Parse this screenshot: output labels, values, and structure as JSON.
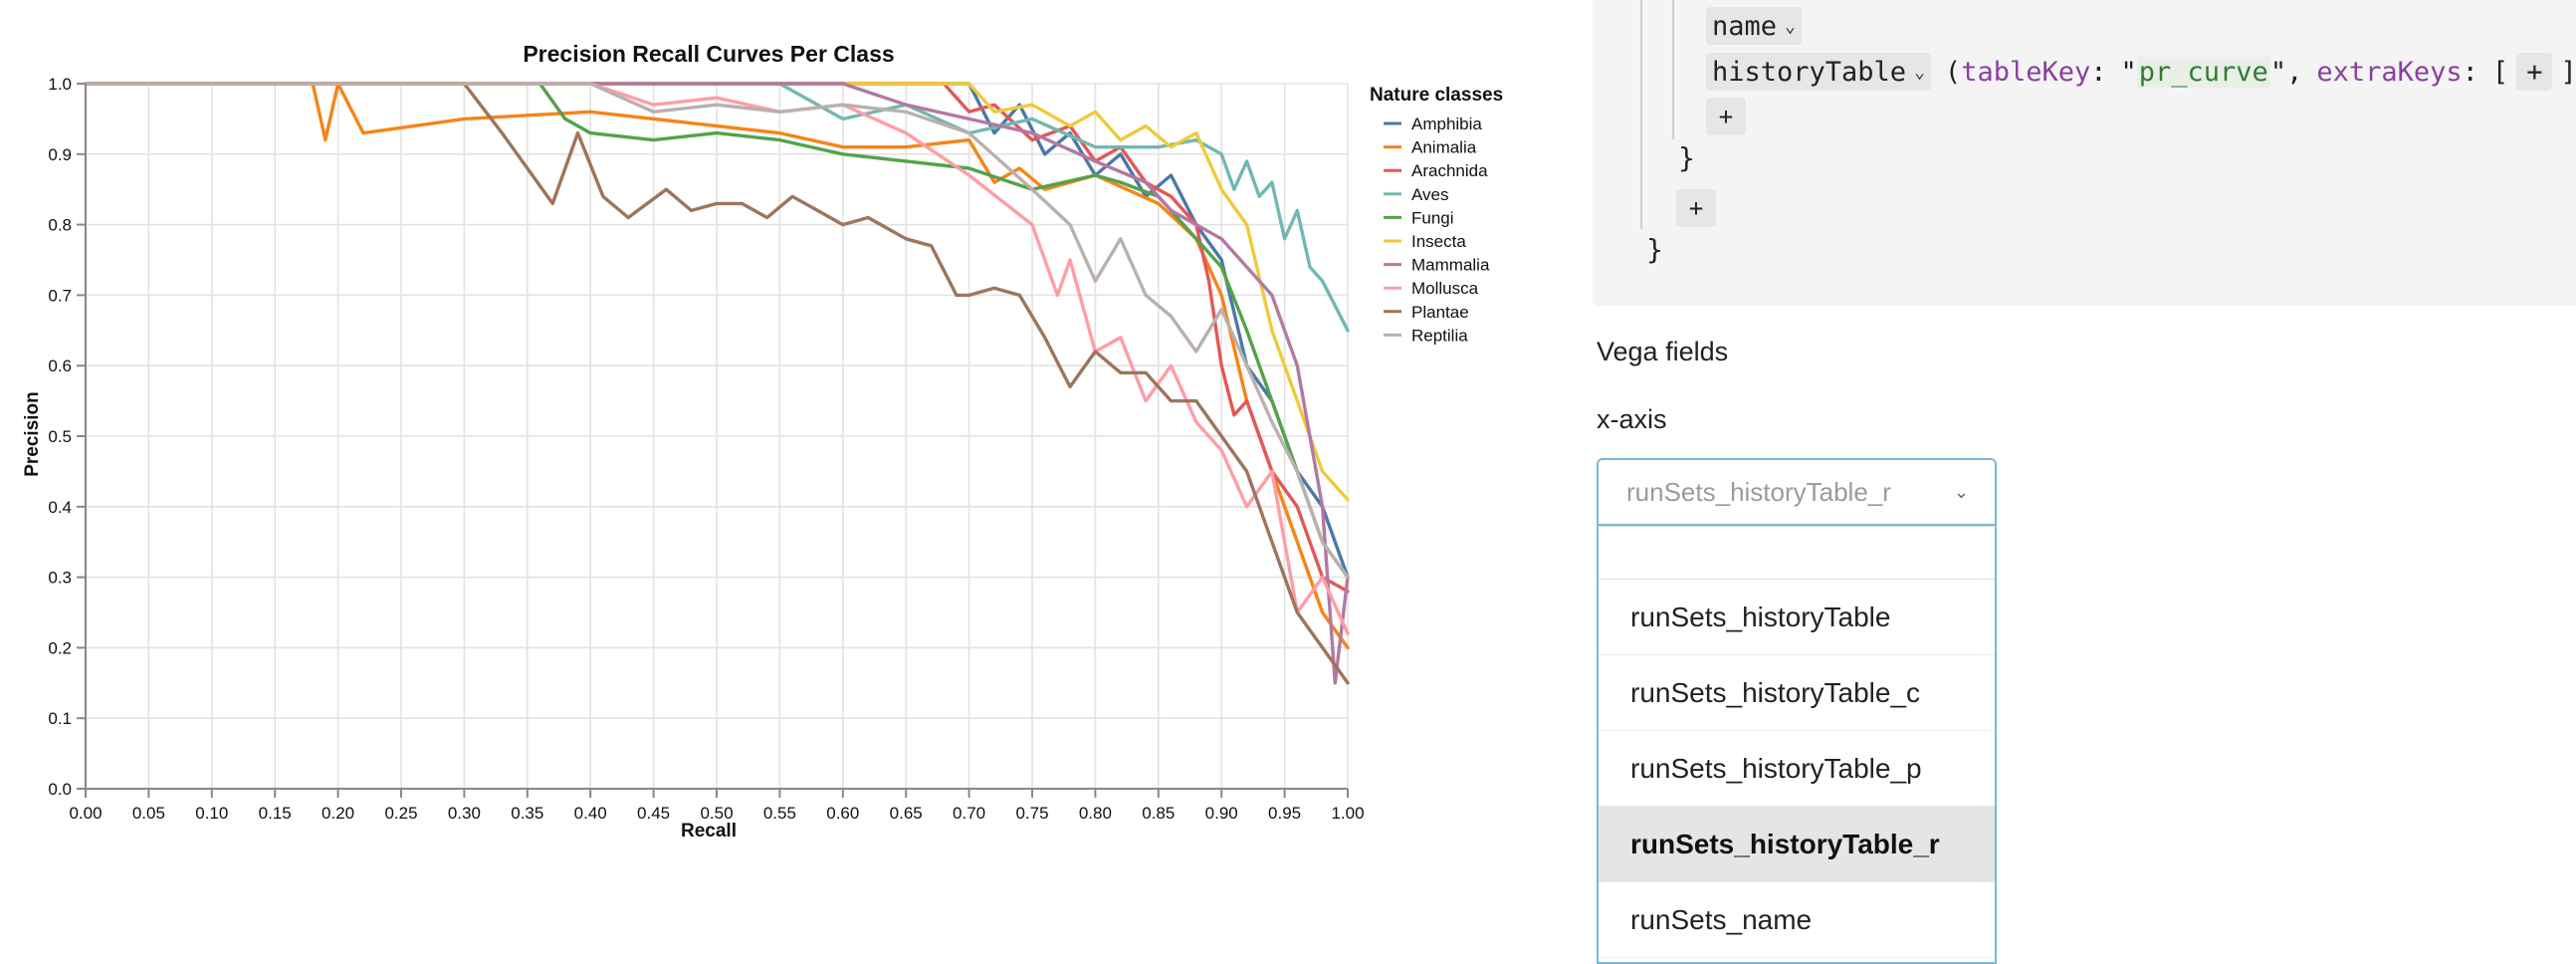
{
  "chart_data": {
    "type": "line",
    "title": "Precision Recall Curves Per Class",
    "xlabel": "Recall",
    "ylabel": "Precision",
    "xlim": [
      0,
      1.0
    ],
    "ylim": [
      0,
      1.0
    ],
    "grid": true,
    "x_ticks": [
      "0.00",
      "0.05",
      "0.10",
      "0.15",
      "0.20",
      "0.25",
      "0.30",
      "0.35",
      "0.40",
      "0.45",
      "0.50",
      "0.55",
      "0.60",
      "0.65",
      "0.70",
      "0.75",
      "0.80",
      "0.85",
      "0.90",
      "0.95",
      "1.00"
    ],
    "y_ticks": [
      "0.0",
      "0.1",
      "0.2",
      "0.3",
      "0.4",
      "0.5",
      "0.6",
      "0.7",
      "0.8",
      "0.9",
      "1.0"
    ],
    "legend_title": "Nature classes",
    "legend_position": "right",
    "series": [
      {
        "name": "Amphibia",
        "color": "#4c78a8",
        "x": [
          0,
          0.7,
          0.72,
          0.74,
          0.76,
          0.78,
          0.8,
          0.82,
          0.84,
          0.86,
          0.88,
          0.9,
          0.92,
          0.94,
          0.96,
          0.98,
          1.0
        ],
        "y": [
          1.0,
          1.0,
          0.93,
          0.97,
          0.9,
          0.93,
          0.87,
          0.9,
          0.84,
          0.87,
          0.8,
          0.75,
          0.6,
          0.55,
          0.45,
          0.4,
          0.3
        ]
      },
      {
        "name": "Animalia",
        "color": "#f58518",
        "x": [
          0,
          0.18,
          0.19,
          0.2,
          0.22,
          0.3,
          0.4,
          0.5,
          0.55,
          0.6,
          0.65,
          0.7,
          0.72,
          0.74,
          0.76,
          0.8,
          0.85,
          0.88,
          0.9,
          0.92,
          0.94,
          0.96,
          0.98,
          1.0
        ],
        "y": [
          1.0,
          1.0,
          0.92,
          1.0,
          0.93,
          0.95,
          0.96,
          0.94,
          0.93,
          0.91,
          0.91,
          0.92,
          0.86,
          0.88,
          0.85,
          0.87,
          0.83,
          0.78,
          0.7,
          0.55,
          0.45,
          0.35,
          0.25,
          0.2
        ]
      },
      {
        "name": "Arachnida",
        "color": "#e45756",
        "x": [
          0,
          0.68,
          0.7,
          0.72,
          0.75,
          0.78,
          0.8,
          0.82,
          0.84,
          0.86,
          0.88,
          0.89,
          0.9,
          0.91,
          0.92,
          0.94,
          0.96,
          0.98,
          1.0
        ],
        "y": [
          1.0,
          1.0,
          0.96,
          0.97,
          0.92,
          0.94,
          0.89,
          0.91,
          0.86,
          0.84,
          0.8,
          0.72,
          0.6,
          0.53,
          0.55,
          0.45,
          0.4,
          0.3,
          0.28
        ]
      },
      {
        "name": "Aves",
        "color": "#72b7b2",
        "x": [
          0,
          0.55,
          0.6,
          0.65,
          0.7,
          0.75,
          0.8,
          0.85,
          0.88,
          0.9,
          0.91,
          0.92,
          0.93,
          0.94,
          0.95,
          0.96,
          0.97,
          0.98,
          1.0
        ],
        "y": [
          1.0,
          1.0,
          0.95,
          0.97,
          0.93,
          0.95,
          0.91,
          0.91,
          0.92,
          0.9,
          0.85,
          0.89,
          0.84,
          0.86,
          0.78,
          0.82,
          0.74,
          0.72,
          0.65
        ]
      },
      {
        "name": "Fungi",
        "color": "#54a24b",
        "x": [
          0,
          0.36,
          0.38,
          0.4,
          0.45,
          0.5,
          0.55,
          0.6,
          0.65,
          0.7,
          0.75,
          0.8,
          0.82,
          0.85,
          0.88,
          0.9,
          0.92,
          0.94,
          0.96,
          0.98,
          1.0
        ],
        "y": [
          1.0,
          1.0,
          0.95,
          0.93,
          0.92,
          0.93,
          0.92,
          0.9,
          0.89,
          0.88,
          0.85,
          0.87,
          0.86,
          0.84,
          0.78,
          0.74,
          0.65,
          0.55,
          0.45,
          0.35,
          0.3
        ]
      },
      {
        "name": "Insecta",
        "color": "#eeca3b",
        "x": [
          0,
          0.7,
          0.72,
          0.75,
          0.78,
          0.8,
          0.82,
          0.84,
          0.86,
          0.88,
          0.9,
          0.92,
          0.94,
          0.96,
          0.98,
          1.0
        ],
        "y": [
          1.0,
          1.0,
          0.96,
          0.97,
          0.94,
          0.96,
          0.92,
          0.94,
          0.91,
          0.93,
          0.85,
          0.8,
          0.65,
          0.55,
          0.45,
          0.41
        ]
      },
      {
        "name": "Mammalia",
        "color": "#b279a2",
        "x": [
          0,
          0.6,
          0.65,
          0.7,
          0.75,
          0.8,
          0.84,
          0.86,
          0.88,
          0.9,
          0.92,
          0.94,
          0.96,
          0.98,
          0.99,
          1.0
        ],
        "y": [
          1.0,
          1.0,
          0.97,
          0.95,
          0.93,
          0.89,
          0.86,
          0.82,
          0.8,
          0.78,
          0.74,
          0.7,
          0.6,
          0.4,
          0.15,
          0.3
        ]
      },
      {
        "name": "Mollusca",
        "color": "#ff9da6",
        "x": [
          0,
          0.4,
          0.45,
          0.5,
          0.55,
          0.6,
          0.65,
          0.7,
          0.75,
          0.77,
          0.78,
          0.8,
          0.82,
          0.84,
          0.86,
          0.88,
          0.9,
          0.92,
          0.94,
          0.96,
          0.98,
          1.0
        ],
        "y": [
          1.0,
          1.0,
          0.97,
          0.98,
          0.96,
          0.97,
          0.93,
          0.87,
          0.8,
          0.7,
          0.75,
          0.62,
          0.64,
          0.55,
          0.6,
          0.52,
          0.48,
          0.4,
          0.45,
          0.25,
          0.3,
          0.22
        ]
      },
      {
        "name": "Plantae",
        "color": "#9d755d",
        "x": [
          0,
          0.3,
          0.33,
          0.35,
          0.37,
          0.39,
          0.41,
          0.43,
          0.46,
          0.48,
          0.5,
          0.52,
          0.54,
          0.56,
          0.58,
          0.6,
          0.62,
          0.64,
          0.65,
          0.67,
          0.69,
          0.7,
          0.72,
          0.74,
          0.76,
          0.78,
          0.8,
          0.82,
          0.84,
          0.86,
          0.88,
          0.9,
          0.92,
          0.94,
          0.96,
          0.98,
          1.0
        ],
        "y": [
          1.0,
          1.0,
          0.93,
          0.88,
          0.83,
          0.93,
          0.84,
          0.81,
          0.85,
          0.82,
          0.83,
          0.83,
          0.81,
          0.84,
          0.82,
          0.8,
          0.81,
          0.79,
          0.78,
          0.77,
          0.7,
          0.7,
          0.71,
          0.7,
          0.64,
          0.57,
          0.62,
          0.59,
          0.59,
          0.55,
          0.55,
          0.5,
          0.45,
          0.35,
          0.25,
          0.2,
          0.15
        ]
      },
      {
        "name": "Reptilia",
        "color": "#bab0ac",
        "x": [
          0,
          0.4,
          0.45,
          0.5,
          0.55,
          0.6,
          0.65,
          0.7,
          0.75,
          0.78,
          0.8,
          0.82,
          0.84,
          0.86,
          0.88,
          0.9,
          0.92,
          0.94,
          0.96,
          0.98,
          1.0
        ],
        "y": [
          1.0,
          1.0,
          0.96,
          0.97,
          0.96,
          0.97,
          0.96,
          0.93,
          0.85,
          0.8,
          0.72,
          0.78,
          0.7,
          0.67,
          0.62,
          0.68,
          0.6,
          0.52,
          0.45,
          0.35,
          0.3
        ]
      }
    ]
  },
  "editor": {
    "code": {
      "name_key": "name",
      "history_key": "historyTable",
      "paren_open": "(",
      "table_key_label": "tableKey",
      "colon": ":",
      "quote": "\"",
      "table_key_value": "pr_curve",
      "comma": ",",
      "extra_keys_label": "extraKeys",
      "bracket_open": "[",
      "bracket_close": "]",
      "plus": "+",
      "more": "···",
      "brace_close": "}"
    },
    "vega_fields_label": "Vega fields",
    "x_axis_label": "x-axis",
    "x_axis_select": {
      "value": "runSets_historyTable_r",
      "search_value": "",
      "options": [
        {
          "label": "runSets_historyTable",
          "selected": false
        },
        {
          "label": "runSets_historyTable_c",
          "selected": false
        },
        {
          "label": "runSets_historyTable_p",
          "selected": false
        },
        {
          "label": "runSets_historyTable_r",
          "selected": true
        },
        {
          "label": "runSets_name",
          "selected": false
        }
      ]
    }
  }
}
